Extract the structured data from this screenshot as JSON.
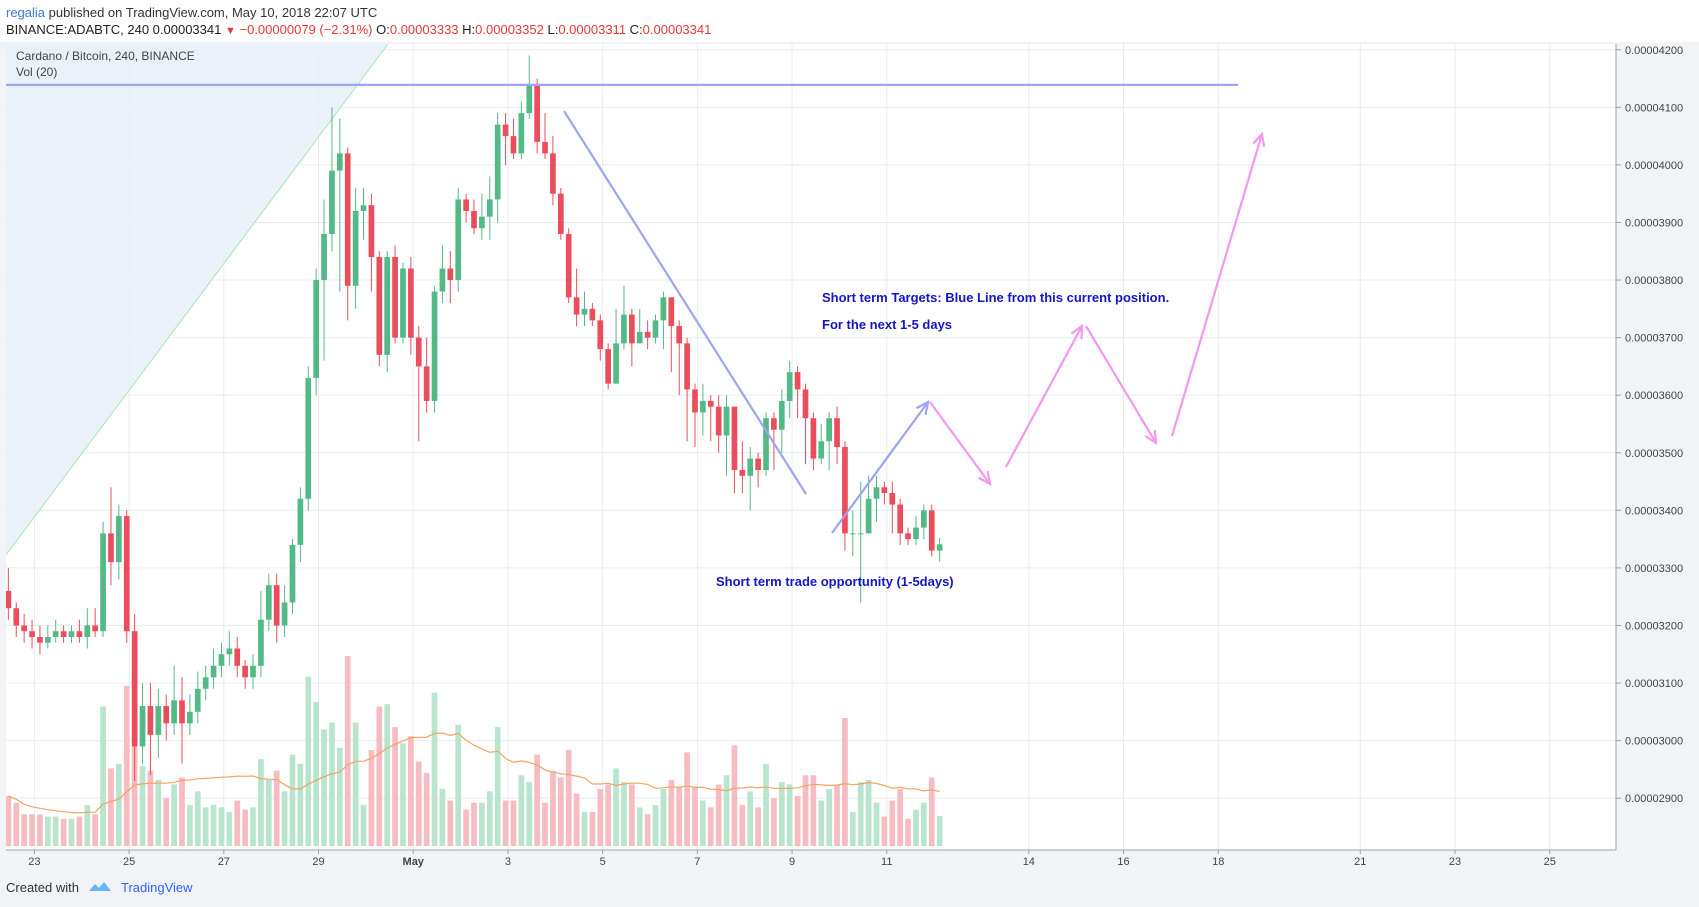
{
  "header": {
    "author": "regalia",
    "published": "published on TradingView.com, May 10, 2018 22:07 UTC",
    "symbol": "BINANCE:ADABTC, 240",
    "last": "0.00003341",
    "change": "−0.00000079 (−2.31%)",
    "o_label": "O:",
    "o_value": "0.00003333",
    "h_label": "H:",
    "h_value": "0.00003352",
    "l_label": "L:",
    "l_value": "0.00003311",
    "c_label": "C:",
    "c_value": "0.00003341"
  },
  "legend": {
    "title": "Cardano / Bitcoin, 240, BINANCE",
    "vol": "Vol (20)"
  },
  "annotations": [
    {
      "text": "Short term Targets: Blue Line from this current position."
    },
    {
      "text": "For the next 1-5 days"
    },
    {
      "text": "Short term trade opportunity (1-5days)"
    }
  ],
  "footer": {
    "created": "Created with",
    "brand": "TradingView"
  },
  "colors": {
    "up": "#53b987",
    "down": "#eb4d5c",
    "vol_up": "#b9e5cf",
    "vol_down": "#f6bcc1",
    "ma": "#f4a460",
    "blue_line": "#9ea3f2",
    "pink_arrow": "#f596f0",
    "grid": "#e8ecf0",
    "annotation": "#1515c8"
  },
  "chart_data": {
    "type": "candlestick",
    "ylim": [
      2.81e-05,
      4.21e-05
    ],
    "yticks": [
      "0.00004200",
      "0.00004100",
      "0.00004000",
      "0.00003900",
      "0.00003800",
      "0.00003700",
      "0.00003600",
      "0.00003500",
      "0.00003400",
      "0.00003300",
      "0.00003200",
      "0.00003100",
      "0.00003000",
      "0.00002900"
    ],
    "ytick_values": [
      4.2e-05,
      4.1e-05,
      4e-05,
      3.9e-05,
      3.8e-05,
      3.7e-05,
      3.6e-05,
      3.5e-05,
      3.4e-05,
      3.3e-05,
      3.2e-05,
      3.1e-05,
      3e-05,
      2.9e-05
    ],
    "xticks": [
      "23",
      "25",
      "27",
      "29",
      "May",
      "3",
      "5",
      "7",
      "9",
      "11",
      "14",
      "16",
      "18",
      "21",
      "23",
      "25"
    ],
    "xtick_days": [
      -8,
      -6,
      -4,
      -2,
      0,
      2,
      4,
      6,
      8,
      10,
      13,
      15,
      17,
      20,
      22,
      24
    ],
    "x_range_days": [
      -8.6,
      25.4
    ],
    "candles_per_day": 6,
    "first_candle_day": -8.55,
    "resistance_level": 4.139e-05,
    "candles": [
      [
        3.26e-05,
        3.23e-05,
        3.3e-05,
        3.21e-05
      ],
      [
        3.23e-05,
        3.2e-05,
        3.24e-05,
        3.18e-05
      ],
      [
        3.2e-05,
        3.19e-05,
        3.22e-05,
        3.17e-05
      ],
      [
        3.19e-05,
        3.18e-05,
        3.21e-05,
        3.16e-05
      ],
      [
        3.18e-05,
        3.17e-05,
        3.2e-05,
        3.15e-05
      ],
      [
        3.17e-05,
        3.18e-05,
        3.2e-05,
        3.16e-05
      ],
      [
        3.18e-05,
        3.19e-05,
        3.21e-05,
        3.17e-05
      ],
      [
        3.19e-05,
        3.18e-05,
        3.2e-05,
        3.17e-05
      ],
      [
        3.18e-05,
        3.19e-05,
        3.2e-05,
        3.17e-05
      ],
      [
        3.19e-05,
        3.18e-05,
        3.21e-05,
        3.17e-05
      ],
      [
        3.18e-05,
        3.2e-05,
        3.23e-05,
        3.16e-05
      ],
      [
        3.2e-05,
        3.19e-05,
        3.23e-05,
        3.18e-05
      ],
      [
        3.19e-05,
        3.36e-05,
        3.38e-05,
        3.18e-05
      ],
      [
        3.36e-05,
        3.31e-05,
        3.44e-05,
        3.27e-05
      ],
      [
        3.31e-05,
        3.39e-05,
        3.41e-05,
        3.28e-05
      ],
      [
        3.39e-05,
        3.19e-05,
        3.4e-05,
        3.17e-05
      ],
      [
        3.19e-05,
        2.99e-05,
        3.22e-05,
        2.93e-05
      ],
      [
        2.99e-05,
        3.06e-05,
        3.1e-05,
        2.96e-05
      ],
      [
        3.06e-05,
        3.01e-05,
        3.1e-05,
        2.94e-05
      ],
      [
        3.01e-05,
        3.06e-05,
        3.09e-05,
        2.97e-05
      ],
      [
        3.06e-05,
        3.03e-05,
        3.08e-05,
        3e-05
      ],
      [
        3.03e-05,
        3.07e-05,
        3.13e-05,
        3.01e-05
      ],
      [
        3.07e-05,
        3.03e-05,
        3.11e-05,
        2.96e-05
      ],
      [
        3.03e-05,
        3.05e-05,
        3.08e-05,
        3.01e-05
      ],
      [
        3.05e-05,
        3.09e-05,
        3.12e-05,
        3.03e-05
      ],
      [
        3.09e-05,
        3.11e-05,
        3.13e-05,
        3.07e-05
      ],
      [
        3.11e-05,
        3.13e-05,
        3.16e-05,
        3.09e-05
      ],
      [
        3.13e-05,
        3.15e-05,
        3.17e-05,
        3.11e-05
      ],
      [
        3.15e-05,
        3.16e-05,
        3.19e-05,
        3.13e-05
      ],
      [
        3.16e-05,
        3.13e-05,
        3.18e-05,
        3.11e-05
      ],
      [
        3.13e-05,
        3.11e-05,
        3.14e-05,
        3.09e-05
      ],
      [
        3.11e-05,
        3.13e-05,
        3.15e-05,
        3.09e-05
      ],
      [
        3.13e-05,
        3.21e-05,
        3.26e-05,
        3.11e-05
      ],
      [
        3.21e-05,
        3.27e-05,
        3.29e-05,
        3.19e-05
      ],
      [
        3.27e-05,
        3.2e-05,
        3.29e-05,
        3.17e-05
      ],
      [
        3.2e-05,
        3.24e-05,
        3.27e-05,
        3.18e-05
      ],
      [
        3.24e-05,
        3.34e-05,
        3.35e-05,
        3.22e-05
      ],
      [
        3.34e-05,
        3.42e-05,
        3.44e-05,
        3.31e-05
      ],
      [
        3.42e-05,
        3.63e-05,
        3.65e-05,
        3.4e-05
      ],
      [
        3.63e-05,
        3.8e-05,
        3.82e-05,
        3.6e-05
      ],
      [
        3.8e-05,
        3.88e-05,
        3.94e-05,
        3.66e-05
      ],
      [
        3.88e-05,
        3.99e-05,
        4.1e-05,
        3.85e-05
      ],
      [
        3.99e-05,
        4.02e-05,
        4.08e-05,
        3.78e-05
      ],
      [
        4.02e-05,
        3.79e-05,
        4.03e-05,
        3.73e-05
      ],
      [
        3.79e-05,
        3.92e-05,
        3.96e-05,
        3.75e-05
      ],
      [
        3.92e-05,
        3.93e-05,
        3.96e-05,
        3.87e-05
      ],
      [
        3.93e-05,
        3.84e-05,
        3.95e-05,
        3.78e-05
      ],
      [
        3.84e-05,
        3.67e-05,
        3.85e-05,
        3.65e-05
      ],
      [
        3.67e-05,
        3.84e-05,
        3.85e-05,
        3.64e-05
      ],
      [
        3.84e-05,
        3.7e-05,
        3.86e-05,
        3.69e-05
      ],
      [
        3.7e-05,
        3.82e-05,
        3.83e-05,
        3.69e-05
      ],
      [
        3.82e-05,
        3.7e-05,
        3.84e-05,
        3.67e-05
      ],
      [
        3.7e-05,
        3.65e-05,
        3.72e-05,
        3.52e-05
      ],
      [
        3.65e-05,
        3.59e-05,
        3.7e-05,
        3.57e-05
      ],
      [
        3.59e-05,
        3.78e-05,
        3.79e-05,
        3.57e-05
      ],
      [
        3.78e-05,
        3.82e-05,
        3.86e-05,
        3.76e-05
      ],
      [
        3.82e-05,
        3.8e-05,
        3.85e-05,
        3.76e-05
      ],
      [
        3.8e-05,
        3.94e-05,
        3.96e-05,
        3.78e-05
      ],
      [
        3.94e-05,
        3.92e-05,
        3.95e-05,
        3.9e-05
      ],
      [
        3.92e-05,
        3.89e-05,
        3.94e-05,
        3.88e-05
      ],
      [
        3.89e-05,
        3.91e-05,
        3.95e-05,
        3.87e-05
      ],
      [
        3.91e-05,
        3.94e-05,
        3.98e-05,
        3.87e-05
      ],
      [
        3.94e-05,
        4.07e-05,
        4.09e-05,
        3.9e-05
      ],
      [
        4.07e-05,
        4.05e-05,
        4.09e-05,
        4e-05
      ],
      [
        4.05e-05,
        4.02e-05,
        4.08e-05,
        4.01e-05
      ],
      [
        4.02e-05,
        4.09e-05,
        4.11e-05,
        4.01e-05
      ],
      [
        4.09e-05,
        4.14e-05,
        4.19e-05,
        4.08e-05
      ],
      [
        4.14e-05,
        4.04e-05,
        4.15e-05,
        4.02e-05
      ],
      [
        4.04e-05,
        4.02e-05,
        4.09e-05,
        4.01e-05
      ],
      [
        4.02e-05,
        3.95e-05,
        4.05e-05,
        3.93e-05
      ],
      [
        3.95e-05,
        3.88e-05,
        3.96e-05,
        3.87e-05
      ],
      [
        3.88e-05,
        3.77e-05,
        3.89e-05,
        3.76e-05
      ],
      [
        3.77e-05,
        3.74e-05,
        3.82e-05,
        3.72e-05
      ],
      [
        3.74e-05,
        3.75e-05,
        3.78e-05,
        3.72e-05
      ],
      [
        3.75e-05,
        3.73e-05,
        3.76e-05,
        3.72e-05
      ],
      [
        3.73e-05,
        3.68e-05,
        3.74e-05,
        3.66e-05
      ],
      [
        3.68e-05,
        3.62e-05,
        3.69e-05,
        3.61e-05
      ],
      [
        3.62e-05,
        3.69e-05,
        3.75e-05,
        3.62e-05
      ],
      [
        3.69e-05,
        3.74e-05,
        3.79e-05,
        3.68e-05
      ],
      [
        3.74e-05,
        3.69e-05,
        3.75e-05,
        3.65e-05
      ],
      [
        3.69e-05,
        3.71e-05,
        3.75e-05,
        3.69e-05
      ],
      [
        3.71e-05,
        3.7e-05,
        3.73e-05,
        3.68e-05
      ],
      [
        3.7e-05,
        3.73e-05,
        3.74e-05,
        3.69e-05
      ],
      [
        3.73e-05,
        3.77e-05,
        3.78e-05,
        3.68e-05
      ],
      [
        3.77e-05,
        3.72e-05,
        3.76e-05,
        3.64e-05
      ],
      [
        3.72e-05,
        3.69e-05,
        3.73e-05,
        3.6e-05
      ],
      [
        3.69e-05,
        3.61e-05,
        3.7e-05,
        3.52e-05
      ],
      [
        3.61e-05,
        3.57e-05,
        3.62e-05,
        3.51e-05
      ],
      [
        3.57e-05,
        3.59e-05,
        3.62e-05,
        3.53e-05
      ],
      [
        3.59e-05,
        3.58e-05,
        3.6e-05,
        3.52e-05
      ],
      [
        3.58e-05,
        3.53e-05,
        3.6e-05,
        3.5e-05
      ],
      [
        3.53e-05,
        3.58e-05,
        3.6e-05,
        3.46e-05
      ],
      [
        3.58e-05,
        3.47e-05,
        3.58e-05,
        3.43e-05
      ],
      [
        3.47e-05,
        3.46e-05,
        3.52e-05,
        3.43e-05
      ],
      [
        3.46e-05,
        3.49e-05,
        3.51e-05,
        3.4e-05
      ],
      [
        3.49e-05,
        3.47e-05,
        3.5e-05,
        3.44e-05
      ],
      [
        3.47e-05,
        3.56e-05,
        3.57e-05,
        3.46e-05
      ],
      [
        3.56e-05,
        3.54e-05,
        3.57e-05,
        3.47e-05
      ],
      [
        3.54e-05,
        3.59e-05,
        3.61e-05,
        3.5e-05
      ],
      [
        3.59e-05,
        3.64e-05,
        3.66e-05,
        3.56e-05
      ],
      [
        3.64e-05,
        3.61e-05,
        3.65e-05,
        3.56e-05
      ],
      [
        3.61e-05,
        3.56e-05,
        3.62e-05,
        3.48e-05
      ],
      [
        3.56e-05,
        3.49e-05,
        3.57e-05,
        3.47e-05
      ],
      [
        3.49e-05,
        3.52e-05,
        3.55e-05,
        3.48e-05
      ],
      [
        3.52e-05,
        3.56e-05,
        3.57e-05,
        3.47e-05
      ],
      [
        3.56e-05,
        3.51e-05,
        3.58e-05,
        3.48e-05
      ],
      [
        3.51e-05,
        3.36e-05,
        3.52e-05,
        3.33e-05
      ],
      [
        3.36e-05,
        3.36e-05,
        3.4e-05,
        3.32e-05
      ],
      [
        3.36e-05,
        3.36e-05,
        3.45e-05,
        3.24e-05
      ],
      [
        3.36e-05,
        3.42e-05,
        3.46e-05,
        3.36e-05
      ],
      [
        3.42e-05,
        3.44e-05,
        3.46e-05,
        3.38e-05
      ],
      [
        3.44e-05,
        3.43e-05,
        3.45e-05,
        3.41e-05
      ],
      [
        3.43e-05,
        3.41e-05,
        3.45e-05,
        3.36e-05
      ],
      [
        3.41e-05,
        3.36e-05,
        3.42e-05,
        3.34e-05
      ],
      [
        3.36e-05,
        3.35e-05,
        3.37e-05,
        3.34e-05
      ],
      [
        3.35e-05,
        3.37e-05,
        3.39e-05,
        3.34e-05
      ],
      [
        3.37e-05,
        3.4e-05,
        3.41e-05,
        3.35e-05
      ],
      [
        3.4e-05,
        3.33e-05,
        3.41e-05,
        3.32e-05
      ],
      [
        3.33e-05,
        3.341e-05,
        3.352e-05,
        3.311e-05
      ]
    ]
  }
}
